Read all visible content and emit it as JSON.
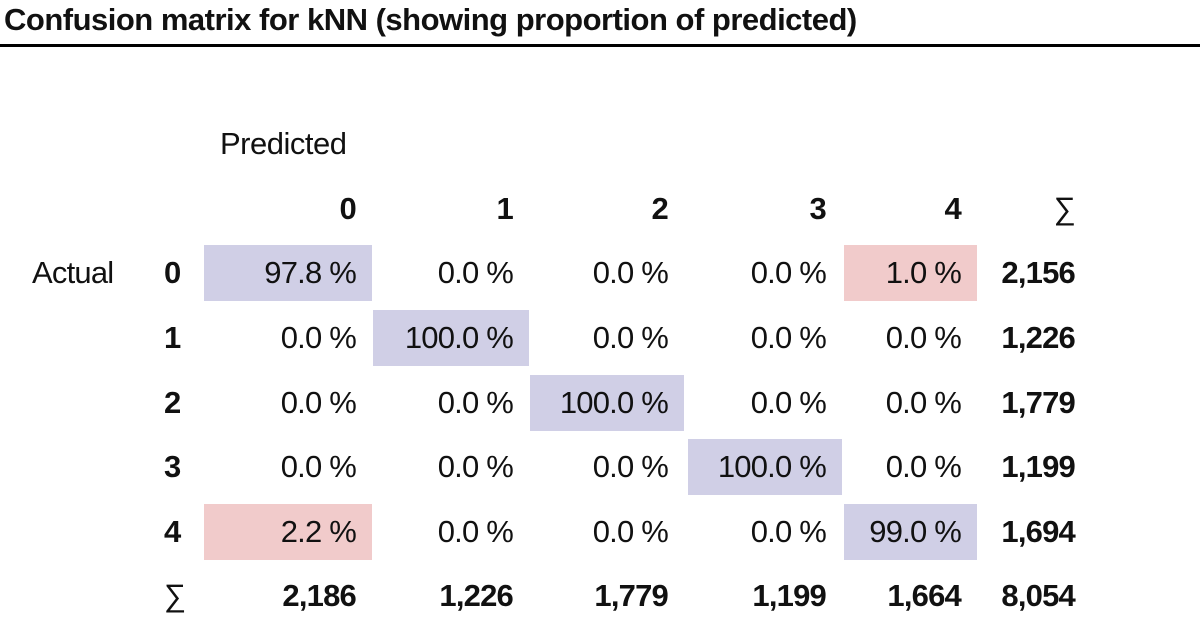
{
  "title": "Confusion matrix for kNN (showing proportion of predicted)",
  "predicted_label": "Predicted",
  "actual_label": "Actual",
  "sum_symbol": "∑",
  "columns": [
    "0",
    "1",
    "2",
    "3",
    "4"
  ],
  "rows": [
    {
      "label": "0",
      "cells": [
        "97.8 %",
        "0.0 %",
        "0.0 %",
        "0.0 %",
        "1.0 %"
      ],
      "total": "2,156"
    },
    {
      "label": "1",
      "cells": [
        "0.0 %",
        "100.0 %",
        "0.0 %",
        "0.0 %",
        "0.0 %"
      ],
      "total": "1,226"
    },
    {
      "label": "2",
      "cells": [
        "0.0 %",
        "0.0 %",
        "100.0 %",
        "0.0 %",
        "0.0 %"
      ],
      "total": "1,779"
    },
    {
      "label": "3",
      "cells": [
        "0.0 %",
        "0.0 %",
        "0.0 %",
        "100.0 %",
        "0.0 %"
      ],
      "total": "1,199"
    },
    {
      "label": "4",
      "cells": [
        "2.2 %",
        "0.0 %",
        "0.0 %",
        "0.0 %",
        "99.0 %"
      ],
      "total": "1,694"
    }
  ],
  "column_totals": [
    "2,186",
    "1,226",
    "1,779",
    "1,199",
    "1,664"
  ],
  "grand_total": "8,054",
  "colors": {
    "diagonal_highlight": "#d0cfe6",
    "error_highlight": "#f1cbcb"
  },
  "highlighted_errors": [
    [
      0,
      4
    ],
    [
      4,
      0
    ]
  ]
}
